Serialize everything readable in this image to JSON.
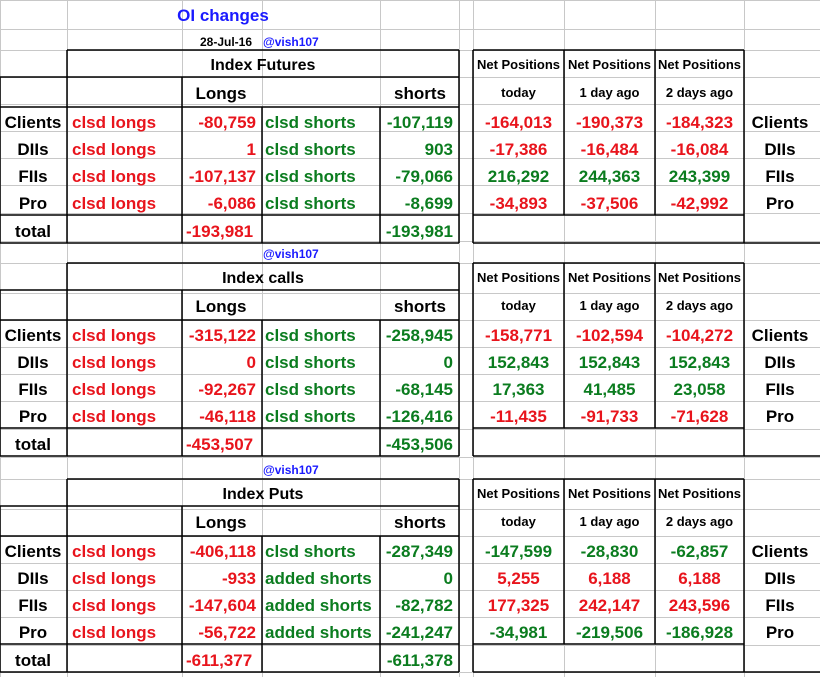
{
  "header": {
    "title": "OI changes",
    "date": "28-Jul-16",
    "handle": "@vish107"
  },
  "colors": {
    "title": "#1a1aff",
    "red": "#e8141c",
    "green": "#0b7c1f",
    "black": "#000000",
    "grid": "#c8c8c8",
    "border": "#000000"
  },
  "sections": [
    {
      "title": "Index Futures",
      "handle": "",
      "long_header": "Longs",
      "short_header": "shorts",
      "net_header": [
        "Net Positions",
        "Net Positions",
        "Net Positions"
      ],
      "net_subheader": [
        "today",
        "1 day ago",
        "2 days ago"
      ],
      "rows": [
        {
          "label": "Clients",
          "long_label": "clsd longs",
          "long": "-80,759",
          "short_label": "clsd shorts",
          "short": "-107,119",
          "net": [
            "-164,013",
            "-190,373",
            "-184,323"
          ],
          "net_color": [
            "red",
            "red",
            "red"
          ],
          "right_label": "Clients"
        },
        {
          "label": "DIIs",
          "long_label": "clsd longs",
          "long": "1",
          "short_label": "clsd shorts",
          "short": "903",
          "net": [
            "-17,386",
            "-16,484",
            "-16,084"
          ],
          "net_color": [
            "red",
            "red",
            "red"
          ],
          "right_label": "DIIs"
        },
        {
          "label": "FIIs",
          "long_label": "clsd longs",
          "long": "-107,137",
          "short_label": "clsd shorts",
          "short": "-79,066",
          "net": [
            "216,292",
            "244,363",
            "243,399"
          ],
          "net_color": [
            "green",
            "green",
            "green"
          ],
          "right_label": "FIIs"
        },
        {
          "label": "Pro",
          "long_label": "clsd longs",
          "long": "-6,086",
          "short_label": "clsd shorts",
          "short": "-8,699",
          "net": [
            "-34,893",
            "-37,506",
            "-42,992"
          ],
          "net_color": [
            "red",
            "red",
            "red"
          ],
          "right_label": "Pro"
        }
      ],
      "total": {
        "label": "total",
        "long": "-193,981",
        "short": "-193,981"
      }
    },
    {
      "title": "Index calls",
      "handle": "@vish107",
      "long_header": "Longs",
      "short_header": "shorts",
      "net_header": [
        "Net Positions",
        "Net Positions",
        "Net Positions"
      ],
      "net_subheader": [
        "today",
        "1 day ago",
        "2 days ago"
      ],
      "rows": [
        {
          "label": "Clients",
          "long_label": "clsd longs",
          "long": "-315,122",
          "short_label": "clsd shorts",
          "short": "-258,945",
          "net": [
            "-158,771",
            "-102,594",
            "-104,272"
          ],
          "net_color": [
            "red",
            "red",
            "red"
          ],
          "right_label": "Clients"
        },
        {
          "label": "DIIs",
          "long_label": "clsd longs",
          "long": "0",
          "short_label": "clsd shorts",
          "short": "0",
          "net": [
            "152,843",
            "152,843",
            "152,843"
          ],
          "net_color": [
            "green",
            "green",
            "green"
          ],
          "right_label": "DIIs"
        },
        {
          "label": "FIIs",
          "long_label": "clsd longs",
          "long": "-92,267",
          "short_label": "clsd shorts",
          "short": "-68,145",
          "net": [
            "17,363",
            "41,485",
            "23,058"
          ],
          "net_color": [
            "green",
            "green",
            "green"
          ],
          "right_label": "FIIs"
        },
        {
          "label": "Pro",
          "long_label": "clsd longs",
          "long": "-46,118",
          "short_label": "clsd shorts",
          "short": "-126,416",
          "net": [
            "-11,435",
            "-91,733",
            "-71,628"
          ],
          "net_color": [
            "red",
            "red",
            "red"
          ],
          "right_label": "Pro"
        }
      ],
      "total": {
        "label": "total",
        "long": "-453,507",
        "short": "-453,506"
      }
    },
    {
      "title": "Index Puts",
      "handle": "@vish107",
      "long_header": "Longs",
      "short_header": "shorts",
      "net_header": [
        "Net Positions",
        "Net Positions",
        "Net Positions"
      ],
      "net_subheader": [
        "today",
        "1 day ago",
        "2 days ago"
      ],
      "rows": [
        {
          "label": "Clients",
          "long_label": "clsd longs",
          "long": "-406,118",
          "short_label": "clsd shorts",
          "short": "-287,349",
          "net": [
            "-147,599",
            "-28,830",
            "-62,857"
          ],
          "net_color": [
            "green",
            "green",
            "green"
          ],
          "right_label": "Clients"
        },
        {
          "label": "DIIs",
          "long_label": "clsd longs",
          "long": "-933",
          "short_label": "added shorts",
          "short": "0",
          "net": [
            "5,255",
            "6,188",
            "6,188"
          ],
          "net_color": [
            "red",
            "red",
            "red"
          ],
          "right_label": "DIIs"
        },
        {
          "label": "FIIs",
          "long_label": "clsd longs",
          "long": "-147,604",
          "short_label": "added shorts",
          "short": "-82,782",
          "net": [
            "177,325",
            "242,147",
            "243,596"
          ],
          "net_color": [
            "red",
            "red",
            "red"
          ],
          "right_label": "FIIs"
        },
        {
          "label": "Pro",
          "long_label": "clsd longs",
          "long": "-56,722",
          "short_label": "added shorts",
          "short": "-241,247",
          "net": [
            "-34,981",
            "-219,506",
            "-186,928"
          ],
          "net_color": [
            "green",
            "green",
            "green"
          ],
          "right_label": "Pro"
        }
      ],
      "total": {
        "label": "total",
        "long": "-611,377",
        "short": "-611,378"
      }
    }
  ]
}
